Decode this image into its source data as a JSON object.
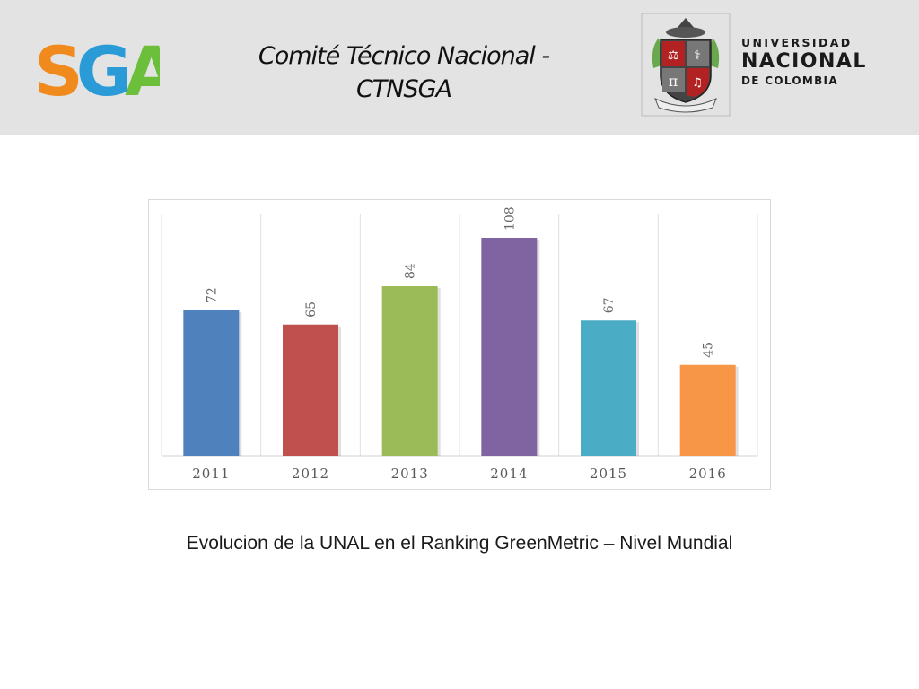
{
  "header": {
    "logo_text": "SGA",
    "title": "Comité Técnico Nacional - CTNSGA",
    "university": {
      "line1": "UNIVERSIDAD",
      "line2": "NACIONAL",
      "line3": "DE COLOMBIA"
    }
  },
  "colors": {
    "header_bg": "#e3e3e3",
    "sga_orange": "#f08a1c",
    "sga_blue": "#2a9bd7",
    "sga_green": "#6cbf3b"
  },
  "chart_data": {
    "type": "bar",
    "categories": [
      "2011",
      "2012",
      "2013",
      "2014",
      "2015",
      "2016"
    ],
    "values": [
      72,
      65,
      84,
      108,
      67,
      45
    ],
    "colors": [
      "#4f81bd",
      "#c0504d",
      "#9bbb59",
      "#8064a2",
      "#4bacc6",
      "#f79646"
    ],
    "title": "",
    "xlabel": "",
    "ylabel": "",
    "ylim": [
      0,
      120
    ],
    "grid": "vertical",
    "data_labels": "rotated"
  },
  "caption": "Evolucion de la UNAL en el Ranking GreenMetric – Nivel Mundial"
}
